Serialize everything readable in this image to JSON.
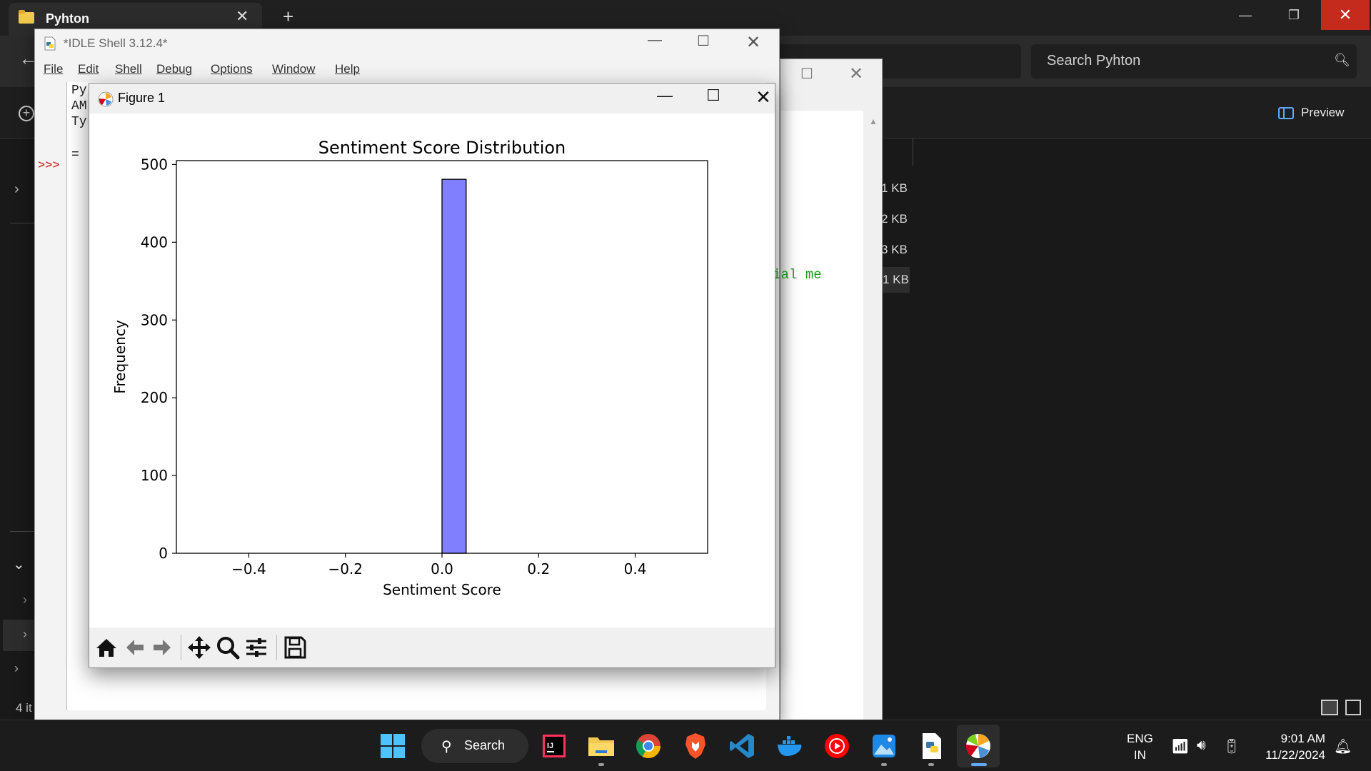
{
  "explorer": {
    "tab_title": "Pyhton",
    "search_placeholder": "Search Pyhton",
    "preview_label": "Preview",
    "file_sizes": [
      "1 KB",
      "2 KB",
      "3 KB",
      "1 KB"
    ],
    "items_count": "4 it"
  },
  "idle": {
    "title": "*IDLE Shell 3.12.4*",
    "menus": [
      "File",
      "Edit",
      "Shell",
      "Debug",
      "Options",
      "Window",
      "Help"
    ],
    "lines": [
      "Py",
      "AM",
      "Ty"
    ],
    "prompt": ">>>",
    "restart_fragment": "= ",
    "green_text": "Social me"
  },
  "figure": {
    "title": "Figure 1",
    "toolbar": [
      "home-icon",
      "back-arrow-icon",
      "forward-arrow-icon",
      "pan-icon",
      "zoom-icon",
      "configure-subplots-icon",
      "save-icon"
    ]
  },
  "chart_data": {
    "type": "bar",
    "title": "Sentiment Score Distribution",
    "xlabel": "Sentiment Score",
    "ylabel": "Frequency",
    "xlim": [
      -0.55,
      0.55
    ],
    "ylim": [
      0,
      505
    ],
    "xticks": [
      -0.4,
      -0.2,
      0.0,
      0.2,
      0.4
    ],
    "xtick_labels": [
      "−0.4",
      "−0.2",
      "0.0",
      "0.2",
      "0.4"
    ],
    "yticks": [
      0,
      100,
      200,
      300,
      400,
      500
    ],
    "ytick_labels": [
      "0",
      "100",
      "200",
      "300",
      "400",
      "500"
    ],
    "bins": [
      {
        "x0": 0.0,
        "x1": 0.05,
        "value": 481
      }
    ],
    "bar_color": "#8080ff",
    "edge_color": "#000000",
    "grid": false
  },
  "taskbar": {
    "search_label": "Search",
    "lang": "ENG",
    "region": "IN",
    "time": "9:01 AM",
    "date": "11/22/2024",
    "apps": [
      "windows-start-icon",
      "intellij-icon",
      "file-explorer-icon",
      "chrome-icon",
      "brave-icon",
      "vscode-icon",
      "docker-icon",
      "youtube-music-icon",
      "photos-icon",
      "idle-python-icon",
      "matplotlib-icon"
    ]
  }
}
